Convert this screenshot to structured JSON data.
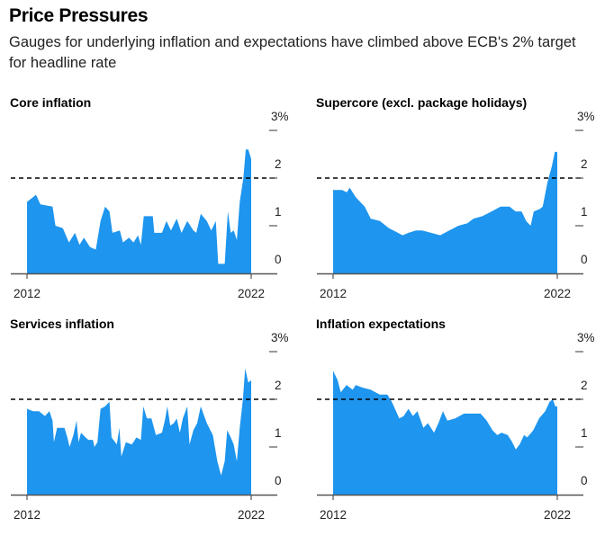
{
  "header": {
    "title": "Price Pressures",
    "subtitle": "Gauges for underlying inflation and expectations have climbed above ECB's 2% target for headline rate"
  },
  "colors": {
    "area": "#1e95ee",
    "target_line": "#000000",
    "axis": "#555555"
  },
  "chart_data": [
    {
      "type": "area",
      "title": "Core inflation",
      "xlim": [
        2012,
        2022
      ],
      "ylim": [
        0,
        3
      ],
      "x_ticks": [
        "2012",
        "2022"
      ],
      "y_ticks": [
        "0",
        "1",
        "2",
        "3%"
      ],
      "reference_line": 2,
      "points": [
        [
          2012.0,
          1.5
        ],
        [
          2012.4,
          1.65
        ],
        [
          2012.6,
          1.45
        ],
        [
          2013.14,
          1.4
        ],
        [
          2013.27,
          1.0
        ],
        [
          2013.6,
          0.95
        ],
        [
          2013.87,
          0.65
        ],
        [
          2014.14,
          0.85
        ],
        [
          2014.34,
          0.6
        ],
        [
          2014.54,
          0.75
        ],
        [
          2014.81,
          0.55
        ],
        [
          2015.07,
          0.5
        ],
        [
          2015.28,
          1.1
        ],
        [
          2015.48,
          1.4
        ],
        [
          2015.68,
          1.3
        ],
        [
          2015.81,
          0.85
        ],
        [
          2016.14,
          0.9
        ],
        [
          2016.28,
          0.65
        ],
        [
          2016.55,
          0.75
        ],
        [
          2016.75,
          0.65
        ],
        [
          2016.95,
          0.8
        ],
        [
          2017.08,
          0.6
        ],
        [
          2017.21,
          1.2
        ],
        [
          2017.61,
          1.2
        ],
        [
          2017.68,
          0.85
        ],
        [
          2018.02,
          0.85
        ],
        [
          2018.22,
          1.1
        ],
        [
          2018.42,
          0.9
        ],
        [
          2018.68,
          1.15
        ],
        [
          2018.89,
          0.85
        ],
        [
          2019.15,
          1.1
        ],
        [
          2019.42,
          0.9
        ],
        [
          2019.55,
          0.85
        ],
        [
          2019.75,
          1.25
        ],
        [
          2020.02,
          1.1
        ],
        [
          2020.22,
          0.9
        ],
        [
          2020.42,
          1.1
        ],
        [
          2020.53,
          0.2
        ],
        [
          2020.82,
          0.2
        ],
        [
          2020.96,
          1.3
        ],
        [
          2021.09,
          0.85
        ],
        [
          2021.22,
          0.9
        ],
        [
          2021.36,
          0.7
        ],
        [
          2021.49,
          1.5
        ],
        [
          2021.65,
          2.0
        ],
        [
          2021.76,
          2.6
        ],
        [
          2021.87,
          2.6
        ],
        [
          2022.0,
          2.4
        ]
      ]
    },
    {
      "type": "area",
      "title": "Supercore (excl. package holidays)",
      "xlim": [
        2012,
        2022
      ],
      "ylim": [
        0,
        3
      ],
      "x_ticks": [
        "2012",
        "2022"
      ],
      "y_ticks": [
        "0",
        "1",
        "2",
        "3%"
      ],
      "reference_line": 2,
      "points": [
        [
          2012.0,
          1.75
        ],
        [
          2012.4,
          1.75
        ],
        [
          2012.61,
          1.7
        ],
        [
          2012.74,
          1.8
        ],
        [
          2013.01,
          1.6
        ],
        [
          2013.41,
          1.4
        ],
        [
          2013.68,
          1.15
        ],
        [
          2014.09,
          1.1
        ],
        [
          2014.49,
          0.95
        ],
        [
          2014.89,
          0.85
        ],
        [
          2015.1,
          0.8
        ],
        [
          2015.36,
          0.85
        ],
        [
          2015.7,
          0.9
        ],
        [
          2015.97,
          0.9
        ],
        [
          2016.37,
          0.85
        ],
        [
          2016.78,
          0.8
        ],
        [
          2017.18,
          0.9
        ],
        [
          2017.59,
          1.0
        ],
        [
          2017.99,
          1.05
        ],
        [
          2018.26,
          1.15
        ],
        [
          2018.66,
          1.2
        ],
        [
          2019.07,
          1.3
        ],
        [
          2019.47,
          1.4
        ],
        [
          2019.87,
          1.4
        ],
        [
          2020.14,
          1.3
        ],
        [
          2020.41,
          1.3
        ],
        [
          2020.61,
          1.1
        ],
        [
          2020.81,
          1.0
        ],
        [
          2020.95,
          1.3
        ],
        [
          2021.22,
          1.35
        ],
        [
          2021.35,
          1.4
        ],
        [
          2021.56,
          1.9
        ],
        [
          2021.76,
          2.25
        ],
        [
          2021.89,
          2.55
        ],
        [
          2022.0,
          2.55
        ]
      ]
    },
    {
      "type": "area",
      "title": "Services inflation",
      "xlim": [
        2012,
        2022
      ],
      "ylim": [
        0,
        3
      ],
      "x_ticks": [
        "2012",
        "2022"
      ],
      "y_ticks": [
        "0",
        "1",
        "2",
        "3%"
      ],
      "reference_line": 2,
      "points": [
        [
          2012.0,
          1.8
        ],
        [
          2012.27,
          1.75
        ],
        [
          2012.53,
          1.75
        ],
        [
          2012.8,
          1.65
        ],
        [
          2013.0,
          1.75
        ],
        [
          2013.14,
          1.55
        ],
        [
          2013.2,
          1.1
        ],
        [
          2013.34,
          1.4
        ],
        [
          2013.67,
          1.4
        ],
        [
          2013.8,
          1.2
        ],
        [
          2013.9,
          1.0
        ],
        [
          2014.07,
          1.25
        ],
        [
          2014.21,
          1.55
        ],
        [
          2014.3,
          1.1
        ],
        [
          2014.41,
          1.3
        ],
        [
          2014.61,
          1.2
        ],
        [
          2014.74,
          1.15
        ],
        [
          2014.94,
          1.15
        ],
        [
          2015.01,
          1.0
        ],
        [
          2015.14,
          1.1
        ],
        [
          2015.28,
          1.8
        ],
        [
          2015.48,
          1.85
        ],
        [
          2015.68,
          1.95
        ],
        [
          2015.77,
          1.2
        ],
        [
          2016.01,
          1.05
        ],
        [
          2016.12,
          1.4
        ],
        [
          2016.21,
          0.8
        ],
        [
          2016.41,
          1.1
        ],
        [
          2016.68,
          1.05
        ],
        [
          2016.88,
          1.2
        ],
        [
          2017.08,
          1.15
        ],
        [
          2017.19,
          1.85
        ],
        [
          2017.35,
          1.6
        ],
        [
          2017.55,
          1.6
        ],
        [
          2017.75,
          1.25
        ],
        [
          2018.02,
          1.3
        ],
        [
          2018.15,
          1.55
        ],
        [
          2018.26,
          1.85
        ],
        [
          2018.39,
          1.45
        ],
        [
          2018.55,
          1.5
        ],
        [
          2018.68,
          1.6
        ],
        [
          2018.82,
          1.3
        ],
        [
          2018.95,
          1.6
        ],
        [
          2019.15,
          1.85
        ],
        [
          2019.25,
          1.05
        ],
        [
          2019.42,
          1.35
        ],
        [
          2019.59,
          1.5
        ],
        [
          2019.75,
          1.85
        ],
        [
          2020.02,
          1.5
        ],
        [
          2020.29,
          1.25
        ],
        [
          2020.49,
          0.7
        ],
        [
          2020.66,
          0.4
        ],
        [
          2020.82,
          0.7
        ],
        [
          2020.93,
          1.35
        ],
        [
          2021.09,
          1.2
        ],
        [
          2021.22,
          1.05
        ],
        [
          2021.36,
          0.7
        ],
        [
          2021.49,
          1.4
        ],
        [
          2021.63,
          2.0
        ],
        [
          2021.73,
          2.65
        ],
        [
          2021.87,
          2.35
        ],
        [
          2022.0,
          2.4
        ]
      ]
    },
    {
      "type": "area",
      "title": "Inflation expectations",
      "xlim": [
        2012,
        2022
      ],
      "ylim": [
        0,
        3
      ],
      "x_ticks": [
        "2012",
        "2022"
      ],
      "y_ticks": [
        "0",
        "1",
        "2",
        "3%"
      ],
      "reference_line": 2,
      "points": [
        [
          2012.0,
          2.6
        ],
        [
          2012.2,
          2.4
        ],
        [
          2012.34,
          2.15
        ],
        [
          2012.6,
          2.3
        ],
        [
          2012.87,
          2.2
        ],
        [
          2013.01,
          2.3
        ],
        [
          2013.28,
          2.25
        ],
        [
          2013.68,
          2.2
        ],
        [
          2014.08,
          2.1
        ],
        [
          2014.42,
          2.1
        ],
        [
          2014.62,
          1.95
        ],
        [
          2014.95,
          1.6
        ],
        [
          2015.15,
          1.65
        ],
        [
          2015.36,
          1.8
        ],
        [
          2015.56,
          1.65
        ],
        [
          2015.76,
          1.75
        ],
        [
          2016.03,
          1.4
        ],
        [
          2016.23,
          1.5
        ],
        [
          2016.5,
          1.3
        ],
        [
          2016.7,
          1.5
        ],
        [
          2016.9,
          1.75
        ],
        [
          2017.1,
          1.55
        ],
        [
          2017.44,
          1.6
        ],
        [
          2017.84,
          1.7
        ],
        [
          2018.24,
          1.7
        ],
        [
          2018.58,
          1.7
        ],
        [
          2018.85,
          1.55
        ],
        [
          2019.11,
          1.35
        ],
        [
          2019.32,
          1.25
        ],
        [
          2019.52,
          1.3
        ],
        [
          2019.79,
          1.25
        ],
        [
          2019.99,
          1.1
        ],
        [
          2020.15,
          0.95
        ],
        [
          2020.32,
          1.05
        ],
        [
          2020.52,
          1.25
        ],
        [
          2020.66,
          1.2
        ],
        [
          2020.93,
          1.35
        ],
        [
          2021.19,
          1.6
        ],
        [
          2021.46,
          1.75
        ],
        [
          2021.66,
          1.95
        ],
        [
          2021.8,
          2.0
        ],
        [
          2021.91,
          1.85
        ],
        [
          2022.0,
          1.85
        ]
      ]
    }
  ]
}
